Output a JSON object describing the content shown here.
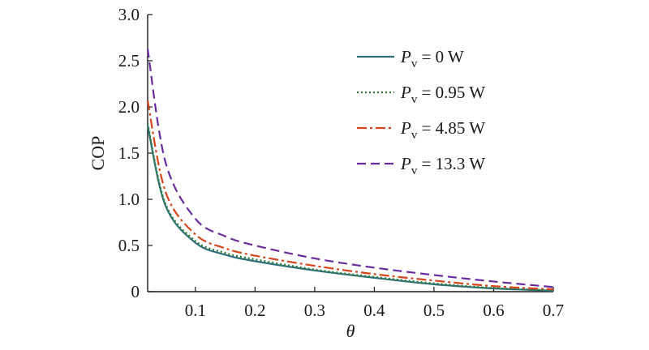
{
  "chart_data": {
    "type": "line",
    "title": "",
    "xlabel": "θ",
    "ylabel": "COP",
    "xlim": [
      0.02,
      0.7
    ],
    "ylim": [
      0,
      3.0
    ],
    "x_ticks": [
      "0.1",
      "0.2",
      "0.3",
      "0.4",
      "0.5",
      "0.6",
      "0.7"
    ],
    "x_tick_values": [
      0.1,
      0.2,
      0.3,
      0.4,
      0.5,
      0.6,
      0.7
    ],
    "y_ticks": [
      "0",
      "0.5",
      "1.0",
      "1.5",
      "2.0",
      "2.5",
      "3.0"
    ],
    "y_tick_values": [
      0,
      0.5,
      1.0,
      1.5,
      2.0,
      2.5,
      3.0
    ],
    "grid": false,
    "legend_position": "top-right",
    "x": [
      0.02,
      0.05,
      0.1,
      0.15,
      0.2,
      0.3,
      0.4,
      0.5,
      0.6,
      0.7
    ],
    "series": [
      {
        "name_symbol": "P",
        "name_subscript": "v",
        "name_value": " = 0 W",
        "color": "#2f6f7c",
        "dash": "solid",
        "values": [
          1.8,
          0.93,
          0.53,
          0.4,
          0.33,
          0.23,
          0.15,
          0.08,
          0.035,
          0.01
        ]
      },
      {
        "name_symbol": "P",
        "name_subscript": "v",
        "name_value": " = 0.95 W",
        "color": "#2e7d32",
        "dash": "dotted",
        "values": [
          1.82,
          0.95,
          0.55,
          0.42,
          0.35,
          0.24,
          0.16,
          0.09,
          0.04,
          0.015
        ]
      },
      {
        "name_symbol": "P",
        "name_subscript": "v",
        "name_value": " = 4.85 W",
        "color": "#d6451b",
        "dash": "dashdot",
        "values": [
          2.07,
          1.08,
          0.62,
          0.47,
          0.39,
          0.28,
          0.19,
          0.12,
          0.06,
          0.025
        ]
      },
      {
        "name_symbol": "P",
        "name_subscript": "v",
        "name_value": " = 13.3 W",
        "color": "#6a2c9c",
        "dash": "dashed",
        "values": [
          2.63,
          1.4,
          0.79,
          0.6,
          0.5,
          0.36,
          0.26,
          0.18,
          0.11,
          0.05
        ]
      }
    ]
  }
}
